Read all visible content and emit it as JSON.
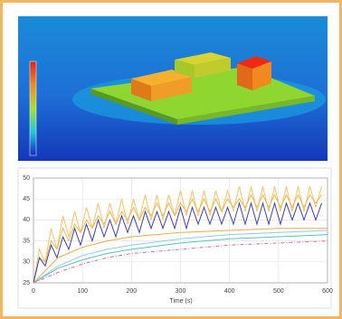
{
  "chart_data": {
    "type": "line",
    "xlabel": "Time (s)",
    "xlim": [
      0,
      600
    ],
    "xticks": [
      0,
      100,
      200,
      300,
      400,
      500,
      600
    ],
    "ylim": [
      25,
      50
    ],
    "yticks": [
      25,
      30,
      35,
      40,
      45,
      50
    ],
    "grid": true,
    "series": [
      {
        "color": "#f3c26b",
        "x": [
          0,
          12,
          24,
          36,
          48,
          60,
          72,
          84,
          96,
          108,
          120,
          132,
          144,
          156,
          168,
          180,
          192,
          204,
          216,
          228,
          240,
          252,
          264,
          276,
          288,
          300,
          312,
          324,
          336,
          348,
          360,
          372,
          384,
          396,
          408,
          420,
          432,
          444,
          456,
          468,
          480,
          492,
          504,
          516,
          528,
          540,
          552,
          564,
          576,
          588
        ],
        "values": [
          25,
          33,
          30,
          38,
          33,
          41,
          36,
          42,
          37,
          43,
          38,
          44,
          38,
          44,
          39,
          45,
          39,
          45,
          40,
          46,
          40,
          46,
          40,
          46,
          41,
          47,
          41,
          47,
          41,
          47,
          41,
          47,
          42,
          47,
          42,
          48,
          42,
          48,
          42,
          48,
          42,
          48,
          42,
          48,
          42,
          48,
          42,
          48,
          43,
          48
        ]
      },
      {
        "color": "#e8b94a",
        "x": [
          0,
          12,
          24,
          36,
          48,
          60,
          72,
          84,
          96,
          108,
          120,
          132,
          144,
          156,
          168,
          180,
          192,
          204,
          216,
          228,
          240,
          252,
          264,
          276,
          288,
          300,
          312,
          324,
          336,
          348,
          360,
          372,
          384,
          396,
          408,
          420,
          432,
          444,
          456,
          468,
          480,
          492,
          504,
          516,
          528,
          540,
          552,
          564,
          576,
          588
        ],
        "values": [
          25,
          31,
          30,
          35,
          33,
          38,
          35,
          39,
          37,
          40,
          38,
          41,
          39,
          42,
          39,
          42,
          40,
          43,
          40,
          43,
          41,
          44,
          41,
          44,
          41,
          44,
          42,
          45,
          42,
          45,
          42,
          45,
          42,
          45,
          43,
          45,
          43,
          46,
          43,
          46,
          43,
          46,
          43,
          46,
          43,
          46,
          43,
          46,
          44,
          46
        ]
      },
      {
        "color": "#3a3fb0",
        "x": [
          0,
          12,
          24,
          36,
          48,
          60,
          72,
          84,
          96,
          108,
          120,
          132,
          144,
          156,
          168,
          180,
          192,
          204,
          216,
          228,
          240,
          252,
          264,
          276,
          288,
          300,
          312,
          324,
          336,
          348,
          360,
          372,
          384,
          396,
          408,
          420,
          432,
          444,
          456,
          468,
          480,
          492,
          504,
          516,
          528,
          540,
          552,
          564,
          576,
          588
        ],
        "values": [
          25,
          31,
          29,
          34,
          31,
          36,
          33,
          38,
          34,
          39,
          35,
          40,
          36,
          40,
          36,
          41,
          37,
          41,
          37,
          42,
          38,
          42,
          38,
          42,
          38,
          43,
          38,
          43,
          39,
          43,
          39,
          43,
          39,
          43,
          39,
          44,
          39,
          44,
          39,
          44,
          39,
          44,
          39,
          44,
          40,
          44,
          40,
          44,
          40,
          44
        ]
      },
      {
        "color": "#f0a848",
        "x": [
          0,
          50,
          100,
          150,
          200,
          300,
          400,
          500,
          600
        ],
        "values": [
          25,
          31,
          33.5,
          35,
          36,
          37,
          37.5,
          38,
          38
        ]
      },
      {
        "color": "#8fc8ee",
        "x": [
          0,
          50,
          100,
          150,
          200,
          300,
          400,
          500,
          600
        ],
        "values": [
          25,
          29,
          31.5,
          33,
          34,
          35.5,
          36.5,
          37,
          37.5
        ]
      },
      {
        "color": "#5cc0b8",
        "x": [
          0,
          50,
          100,
          150,
          200,
          300,
          400,
          500,
          600
        ],
        "values": [
          25,
          28.5,
          30.5,
          32,
          33,
          34.5,
          35.5,
          36,
          36.5
        ]
      },
      {
        "color": "#d46a9c",
        "dash": "4 2 1 2",
        "x": [
          0,
          50,
          100,
          150,
          200,
          300,
          400,
          500,
          600
        ],
        "values": [
          25,
          27.5,
          29.5,
          31,
          32,
          33,
          34,
          34.5,
          35
        ]
      }
    ]
  }
}
